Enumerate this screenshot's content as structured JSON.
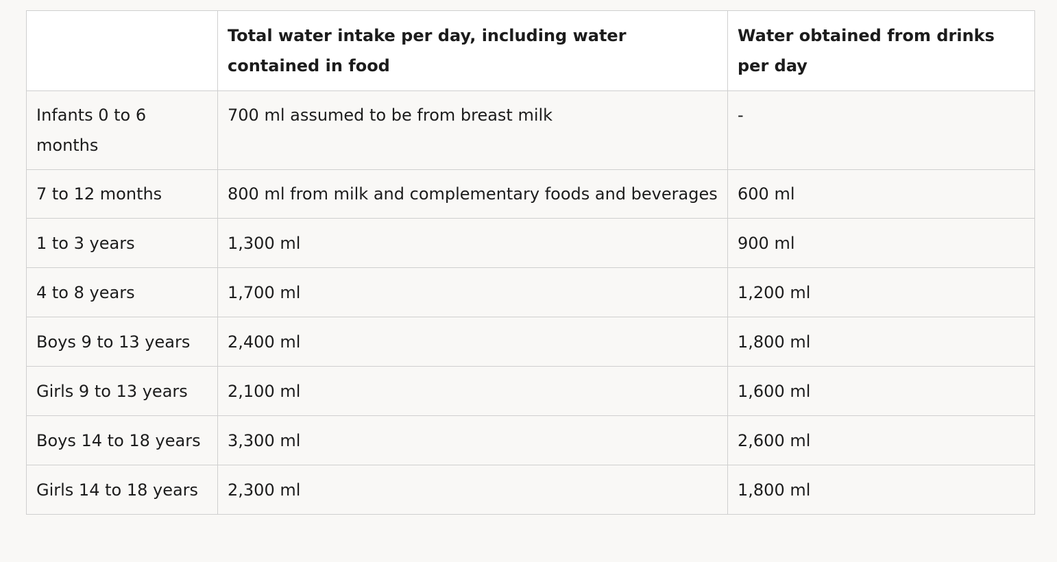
{
  "table": {
    "headers": [
      "",
      "Total water intake per day, including water contained in food",
      "Water obtained from drinks per day"
    ],
    "rows": [
      [
        "Infants 0 to 6 months",
        "700 ml assumed to be from breast milk",
        "-"
      ],
      [
        "7 to 12 months",
        "800 ml from milk and complementary foods and beverages",
        "600 ml"
      ],
      [
        "1 to 3 years",
        "1,300 ml",
        "900 ml"
      ],
      [
        "4 to 8 years",
        "1,700 ml",
        "1,200 ml"
      ],
      [
        "Boys 9 to 13 years",
        "2,400 ml",
        "1,800 ml"
      ],
      [
        "Girls 9 to 13 years",
        "2,100 ml",
        "1,600 ml"
      ],
      [
        "Boys 14 to 18 years",
        "3,300 ml",
        "2,600 ml"
      ],
      [
        "Girls 14 to 18 years",
        "2,300 ml",
        "1,800 ml"
      ]
    ]
  }
}
